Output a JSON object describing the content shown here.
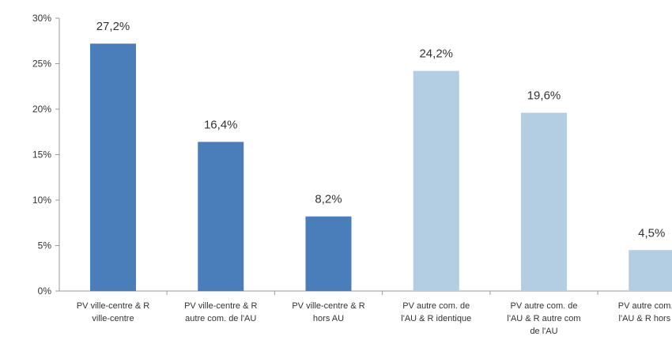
{
  "chart_data": {
    "type": "bar",
    "title": "",
    "xlabel": "",
    "ylabel": "",
    "ylim": [
      0,
      30
    ],
    "yticks": [
      "0%",
      "5%",
      "10%",
      "15%",
      "20%",
      "25%",
      "30%"
    ],
    "ytick_values": [
      0,
      5,
      10,
      15,
      20,
      25,
      30
    ],
    "grid": false,
    "legend": "none",
    "categories": [
      [
        "PV ville-centre & R",
        "ville-centre"
      ],
      [
        "PV ville-centre & R",
        "autre com. de l'AU"
      ],
      [
        "PV ville-centre & R",
        "hors AU"
      ],
      [
        "PV autre com. de",
        "l'AU & R identique"
      ],
      [
        "PV autre com. de",
        "l'AU & R autre com",
        "de l'AU"
      ],
      [
        "PV autre com. de",
        "l'AU & R hors AU"
      ]
    ],
    "values": [
      27.2,
      16.4,
      8.2,
      24.2,
      19.6,
      4.5
    ],
    "value_labels": [
      "27,2%",
      "16,4%",
      "8,2%",
      "24,2%",
      "19,6%",
      "4,5%"
    ],
    "bar_colors": [
      "#4a7ebb",
      "#4a7ebb",
      "#4a7ebb",
      "#b3cde3",
      "#b3cde3",
      "#b3cde3"
    ]
  }
}
